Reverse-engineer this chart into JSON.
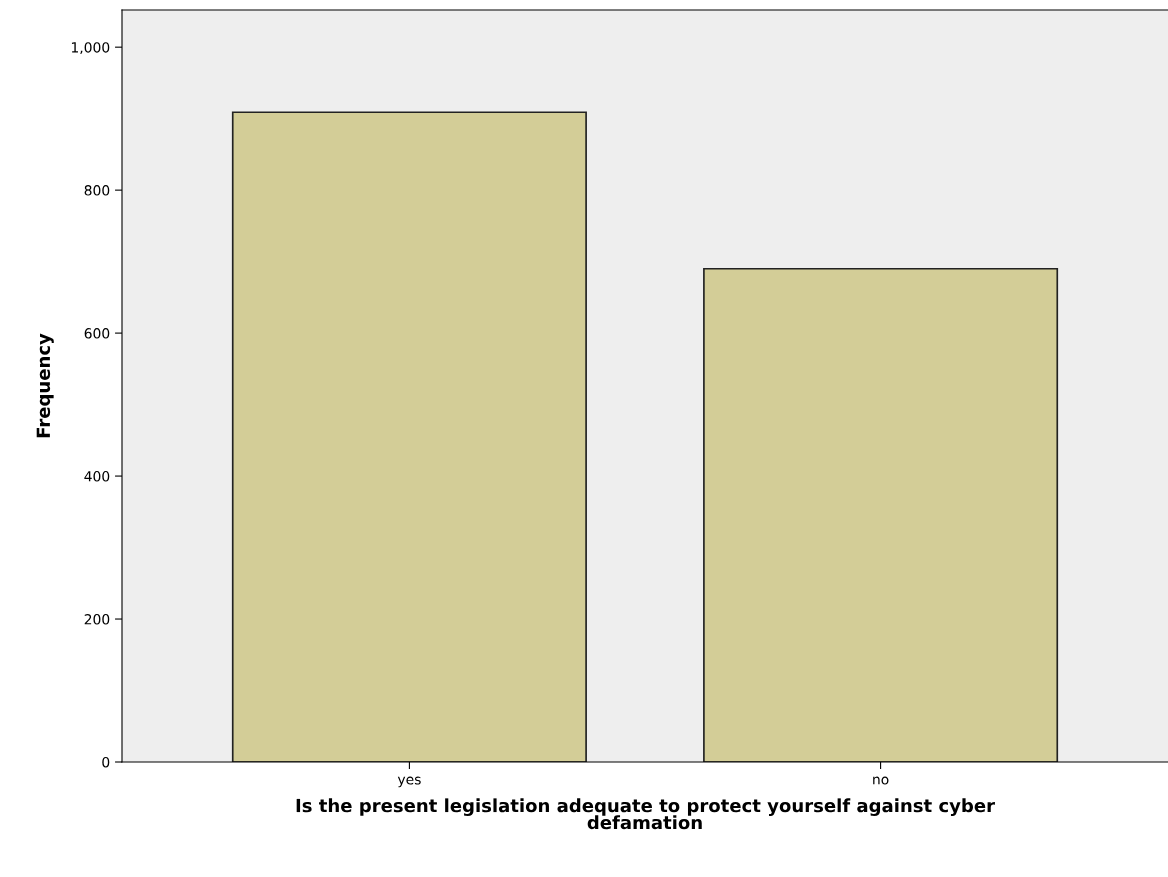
{
  "chart_data": {
    "type": "bar",
    "xlabel": "Is the present legislation adequate to protect yourself against cyber\ndefamation",
    "ylabel": "Frequency",
    "categories": [
      "yes",
      "no"
    ],
    "values": [
      909,
      690
    ],
    "color": "#d3cd97",
    "ylim": [
      0,
      1052
    ],
    "yticks": [
      0,
      200,
      400,
      600,
      800,
      {
        "value": 1000,
        "label": "1,000"
      }
    ],
    "grid": false
  }
}
